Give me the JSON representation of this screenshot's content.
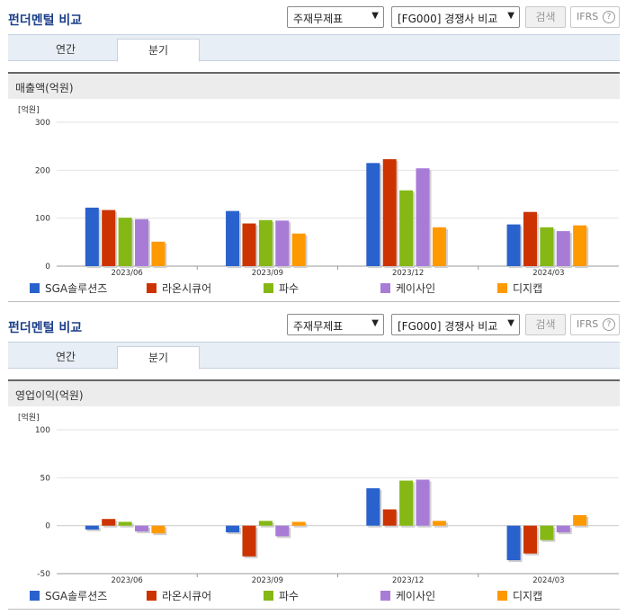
{
  "panels": [
    {
      "title": "펀더멘털 비교",
      "statement_select": "주재무제표",
      "peer_select": "[FG000] 경쟁사 비교",
      "search_label": "검색",
      "ifrs_label": "IFRS",
      "help_glyph": "?",
      "tabs": [
        "연간",
        "분기"
      ],
      "active_tab": "분기",
      "subtitle": "매출액(억원)",
      "chart_data": {
        "type": "bar",
        "unit_label": "[억원]",
        "categories": [
          "2023/06",
          "2023/09",
          "2023/12",
          "2024/03"
        ],
        "ylim": [
          0,
          300
        ],
        "yticks": [
          0,
          100,
          200,
          300
        ],
        "grid": true,
        "legend_position": "bottom",
        "series": [
          {
            "name": "SGA솔루션즈",
            "color": "#2962cc",
            "values": [
              122,
              115,
              215,
              87
            ]
          },
          {
            "name": "라온시큐어",
            "color": "#cc3300",
            "values": [
              117,
              89,
              223,
              113
            ]
          },
          {
            "name": "파수",
            "color": "#85b814",
            "values": [
              101,
              96,
              158,
              81
            ]
          },
          {
            "name": "케이사인",
            "color": "#a87cd6",
            "values": [
              98,
              95,
              204,
              73
            ]
          },
          {
            "name": "디지캡",
            "color": "#ff9900",
            "values": [
              51,
              68,
              81,
              85
            ]
          }
        ]
      }
    },
    {
      "title": "펀더멘털 비교",
      "statement_select": "주재무제표",
      "peer_select": "[FG000] 경쟁사 비교",
      "search_label": "검색",
      "ifrs_label": "IFRS",
      "help_glyph": "?",
      "tabs": [
        "연간",
        "분기"
      ],
      "active_tab": "분기",
      "subtitle": "영업이익(억원)",
      "chart_data": {
        "type": "bar",
        "unit_label": "[억원]",
        "categories": [
          "2023/06",
          "2023/09",
          "2023/12",
          "2024/03"
        ],
        "ylim": [
          -50,
          100
        ],
        "yticks": [
          -50,
          0,
          50,
          100
        ],
        "grid": true,
        "legend_position": "bottom",
        "series": [
          {
            "name": "SGA솔루션즈",
            "color": "#2962cc",
            "values": [
              -4,
              -7,
              39,
              -36
            ]
          },
          {
            "name": "라온시큐어",
            "color": "#cc3300",
            "values": [
              7,
              -32,
              17,
              -29
            ]
          },
          {
            "name": "파수",
            "color": "#85b814",
            "values": [
              4,
              5,
              47,
              -15
            ]
          },
          {
            "name": "케이사인",
            "color": "#a87cd6",
            "values": [
              -6,
              -11,
              48,
              -7
            ]
          },
          {
            "name": "디지캡",
            "color": "#ff9900",
            "values": [
              -8,
              4,
              5,
              11
            ]
          }
        ]
      }
    }
  ]
}
